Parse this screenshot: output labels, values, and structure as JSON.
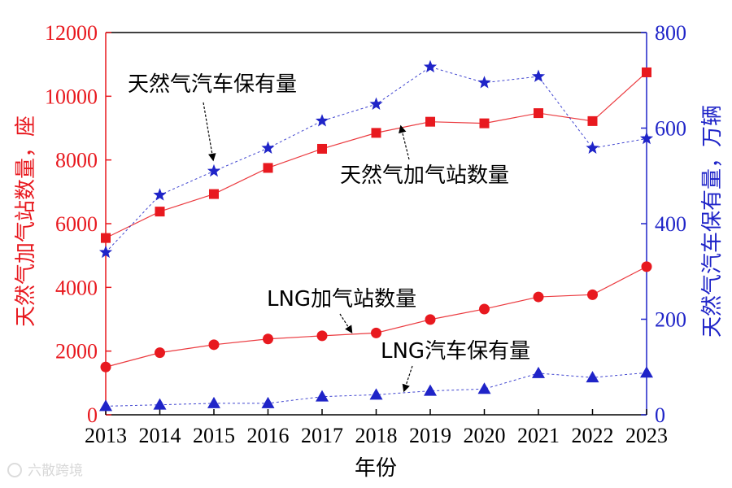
{
  "chart_data": {
    "type": "line",
    "x": [
      2013,
      2014,
      2015,
      2016,
      2017,
      2018,
      2019,
      2020,
      2021,
      2022,
      2023
    ],
    "x_tick_labels": [
      "2013",
      "2014",
      "2015",
      "2016",
      "2017",
      "2018",
      "2019",
      "2020",
      "2021",
      "2022",
      "2023"
    ],
    "xlabel": "年份",
    "ylabel_left": "天然气加气站数量，座",
    "ylabel_right": "天然气汽车保有量，万辆",
    "ylim_left": [
      0,
      12000
    ],
    "ylim_right": [
      0,
      800
    ],
    "y_ticks_left": [
      "0",
      "2000",
      "4000",
      "6000",
      "8000",
      "10000",
      "12000"
    ],
    "y_ticks_right": [
      "0",
      "200",
      "400",
      "600",
      "800"
    ],
    "grid": false,
    "series": [
      {
        "name": "天然气加气站数量",
        "axis": "left",
        "marker": "square",
        "line": "solid",
        "color": "#e8191f",
        "values": [
          5550,
          6380,
          6930,
          7750,
          8350,
          8850,
          9200,
          9150,
          9470,
          9220,
          10750
        ]
      },
      {
        "name": "LNG加气站数量",
        "axis": "left",
        "marker": "circle",
        "line": "solid",
        "color": "#e8191f",
        "values": [
          1500,
          1950,
          2200,
          2380,
          2480,
          2570,
          2990,
          3320,
          3700,
          3770,
          4650
        ]
      },
      {
        "name": "天然气汽车保有量",
        "axis": "right",
        "marker": "star",
        "line": "dashed",
        "color": "#1f24c8",
        "values": [
          340,
          460,
          510,
          558,
          615,
          650,
          728,
          695,
          708,
          558,
          578
        ]
      },
      {
        "name": "LNG汽车保有量",
        "axis": "right",
        "marker": "triangle",
        "line": "dashed",
        "color": "#1f24c8",
        "values": [
          18,
          21,
          24,
          24,
          38,
          42,
          50,
          54,
          87,
          78,
          88
        ]
      }
    ],
    "annotations": [
      {
        "text": "天然气汽车保有量",
        "points_to": "天然气汽车保有量"
      },
      {
        "text": "天然气加气站数量",
        "points_to": "天然气加气站数量"
      },
      {
        "text": "LNG加气站数量",
        "points_to": "LNG加气站数量"
      },
      {
        "text": "LNG汽车保有量",
        "points_to": "LNG汽车保有量"
      }
    ],
    "colors": {
      "left_axis": "#e8191f",
      "right_axis": "#1f24c8",
      "x_axis": "#000000"
    }
  },
  "watermark": "六散跨境"
}
